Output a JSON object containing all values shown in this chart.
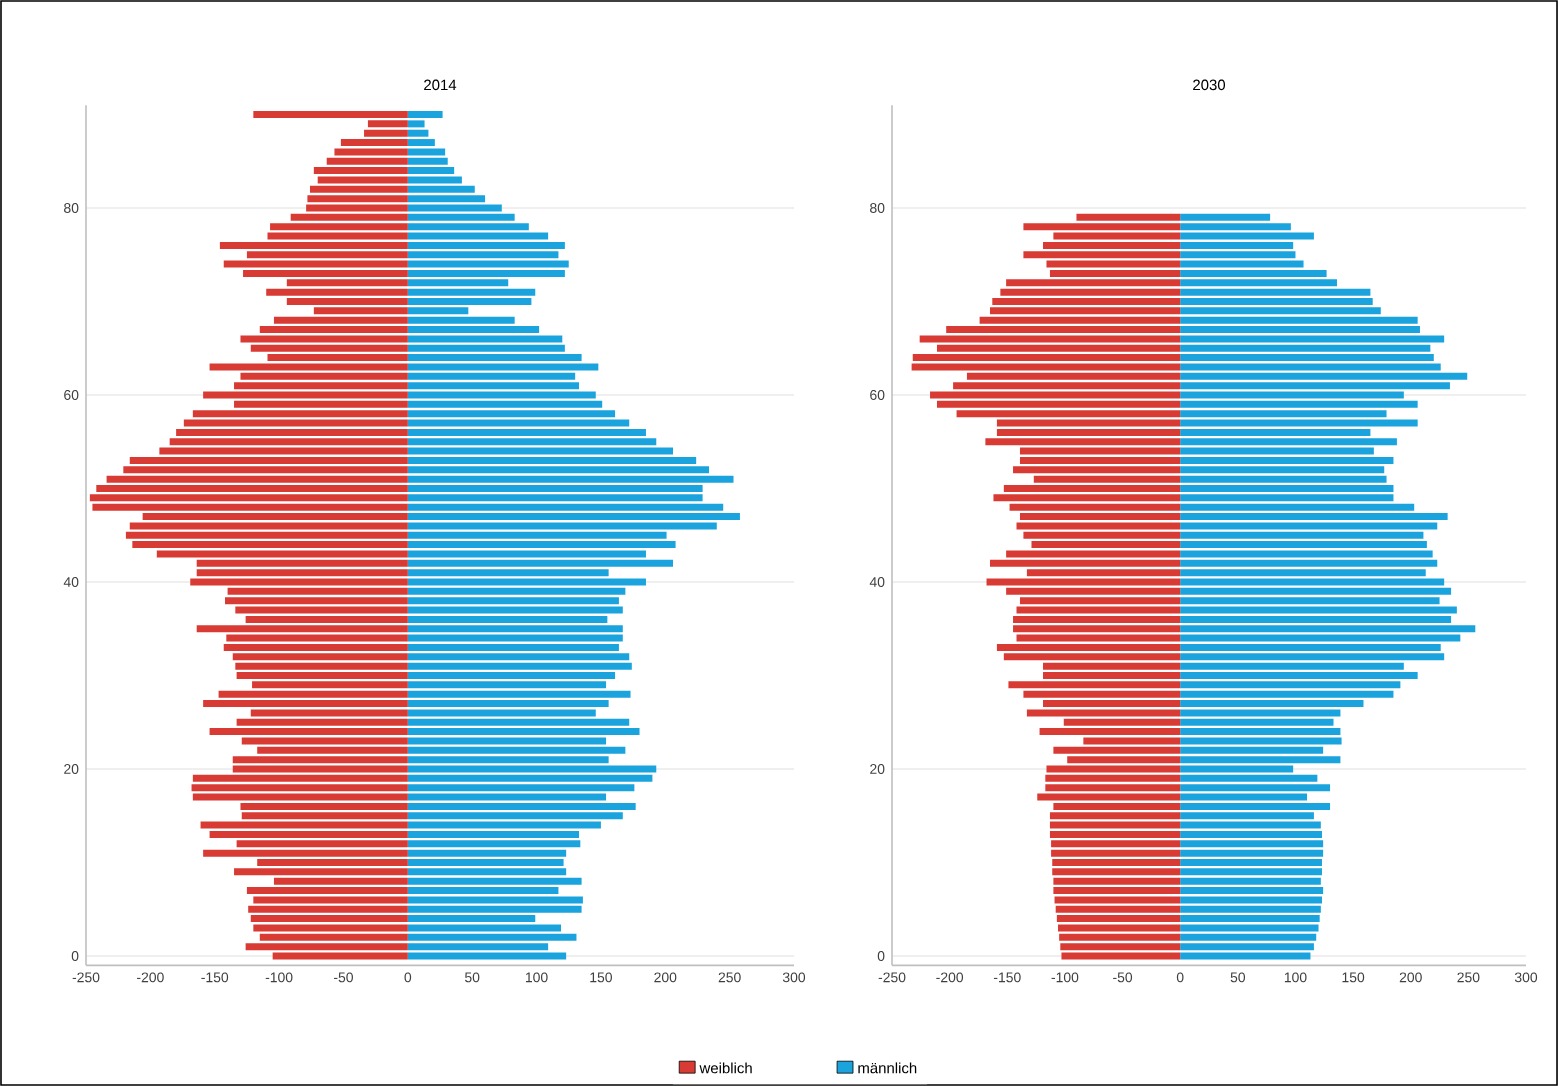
{
  "chart_data": [
    {
      "type": "bar",
      "orientation": "horizontal",
      "stacked": true,
      "title": "2014",
      "grid": "y",
      "legend": "bottom",
      "x": [
        0,
        1,
        2,
        3,
        4,
        5,
        6,
        7,
        8,
        9,
        10,
        11,
        12,
        13,
        14,
        15,
        16,
        17,
        18,
        19,
        20,
        21,
        22,
        23,
        24,
        25,
        26,
        27,
        28,
        29,
        30,
        31,
        32,
        33,
        34,
        35,
        36,
        37,
        38,
        39,
        40,
        41,
        42,
        43,
        44,
        45,
        46,
        47,
        48,
        49,
        50,
        51,
        52,
        53,
        54,
        55,
        56,
        57,
        58,
        59,
        60,
        61,
        62,
        63,
        64,
        65,
        66,
        67,
        68,
        69,
        70,
        71,
        72,
        73,
        74,
        75,
        76,
        77,
        78,
        79,
        80,
        81,
        82,
        83,
        84,
        85,
        86,
        87,
        88,
        89,
        90
      ],
      "xlim": [
        -250,
        300
      ],
      "xticks": [
        -250,
        -200,
        -150,
        -100,
        -50,
        0,
        50,
        100,
        150,
        200,
        250,
        300
      ],
      "ylim": [
        -1,
        91
      ],
      "yticks": [
        0,
        20,
        40,
        60,
        80
      ],
      "series": [
        {
          "name": "weiblich",
          "color": "#d83a34",
          "values": [
            -105,
            -126,
            -115,
            -120,
            -122,
            -124,
            -120,
            -125,
            -104,
            -135,
            -117,
            -159,
            -133,
            -154,
            -161,
            -129,
            -130,
            -167,
            -168,
            -167,
            -136,
            -136,
            -117,
            -129,
            -154,
            -133,
            -122,
            -159,
            -147,
            -121,
            -133,
            -134,
            -136,
            -143,
            -141,
            -164,
            -126,
            -134,
            -142,
            -140,
            -169,
            -164,
            -164,
            -195,
            -214,
            -219,
            -216,
            -206,
            -245,
            -247,
            -242,
            -234,
            -221,
            -216,
            -193,
            -185,
            -180,
            -174,
            -167,
            -135,
            -159,
            -135,
            -130,
            -154,
            -109,
            -122,
            -130,
            -115,
            -104,
            -73,
            -94,
            -110,
            -94,
            -128,
            -143,
            -125,
            -146,
            -109,
            -107,
            -91,
            -79,
            -78,
            -76,
            -70,
            -73,
            -63,
            -57,
            -52,
            -34,
            -31,
            -120
          ]
        },
        {
          "name": "männlich",
          "color": "#1aa3dc",
          "values": [
            123,
            109,
            131,
            119,
            99,
            135,
            136,
            117,
            135,
            123,
            121,
            123,
            134,
            133,
            150,
            167,
            177,
            154,
            176,
            190,
            193,
            156,
            169,
            154,
            180,
            172,
            146,
            156,
            173,
            154,
            161,
            174,
            172,
            164,
            167,
            167,
            155,
            167,
            164,
            169,
            185,
            156,
            206,
            185,
            208,
            201,
            240,
            258,
            245,
            229,
            229,
            253,
            234,
            224,
            206,
            193,
            185,
            172,
            161,
            151,
            146,
            133,
            130,
            148,
            135,
            122,
            120,
            102,
            83,
            47,
            96,
            99,
            78,
            122,
            125,
            117,
            122,
            109,
            94,
            83,
            73,
            60,
            52,
            42,
            36,
            31,
            29,
            21,
            16,
            13,
            27
          ]
        }
      ]
    },
    {
      "type": "bar",
      "orientation": "horizontal",
      "stacked": true,
      "title": "2030",
      "grid": "y",
      "x": [
        0,
        1,
        2,
        3,
        4,
        5,
        6,
        7,
        8,
        9,
        10,
        11,
        12,
        13,
        14,
        15,
        16,
        17,
        18,
        19,
        20,
        21,
        22,
        23,
        24,
        25,
        26,
        27,
        28,
        29,
        30,
        31,
        32,
        33,
        34,
        35,
        36,
        37,
        38,
        39,
        40,
        41,
        42,
        43,
        44,
        45,
        46,
        47,
        48,
        49,
        50,
        51,
        52,
        53,
        54,
        55,
        56,
        57,
        58,
        59,
        60,
        61,
        62,
        63,
        64,
        65,
        66,
        67,
        68,
        69,
        70,
        71,
        72,
        73,
        74,
        75,
        76,
        77,
        78,
        79
      ],
      "xlim": [
        -250,
        300
      ],
      "xticks": [
        -250,
        -200,
        -150,
        -100,
        -50,
        0,
        50,
        100,
        150,
        200,
        250,
        300
      ],
      "ylim": [
        -1,
        91
      ],
      "yticks": [
        0,
        20,
        40,
        60,
        80
      ],
      "series": [
        {
          "color": "#d83a34",
          "values": [
            -103,
            -104,
            -105,
            -106,
            -107,
            -108,
            -109,
            -110,
            -110,
            -111,
            -111,
            -112,
            -112,
            -113,
            -113,
            -113,
            -110,
            -124,
            -117,
            -117,
            -116,
            -98,
            -110,
            -84,
            -122,
            -101,
            -133,
            -119,
            -136,
            -149,
            -119,
            -119,
            -153,
            -159,
            -142,
            -145,
            -145,
            -142,
            -139,
            -151,
            -168,
            -133,
            -165,
            -151,
            -129,
            -136,
            -142,
            -139,
            -148,
            -162,
            -153,
            -127,
            -145,
            -139,
            -139,
            -169,
            -159,
            -159,
            -194,
            -211,
            -217,
            -197,
            -185,
            -233,
            -232,
            -211,
            -226,
            -203,
            -174,
            -165,
            -163,
            -156,
            -151,
            -113,
            -116,
            -136,
            -119,
            -110,
            -136,
            -90
          ]
        },
        {
          "color": "#1aa3dc",
          "values": [
            113,
            116,
            118,
            120,
            121,
            122,
            123,
            124,
            122,
            123,
            123,
            124,
            124,
            123,
            122,
            116,
            130,
            110,
            130,
            119,
            98,
            139,
            124,
            140,
            139,
            133,
            139,
            159,
            185,
            191,
            206,
            194,
            229,
            226,
            243,
            256,
            235,
            240,
            225,
            235,
            229,
            213,
            223,
            219,
            214,
            211,
            223,
            232,
            203,
            185,
            185,
            179,
            177,
            185,
            168,
            188,
            165,
            206,
            179,
            206,
            194,
            234,
            249,
            226,
            220,
            217,
            229,
            208,
            206,
            174,
            167,
            165,
            136,
            127,
            107,
            100,
            98,
            116,
            96,
            78
          ]
        }
      ]
    }
  ]
}
